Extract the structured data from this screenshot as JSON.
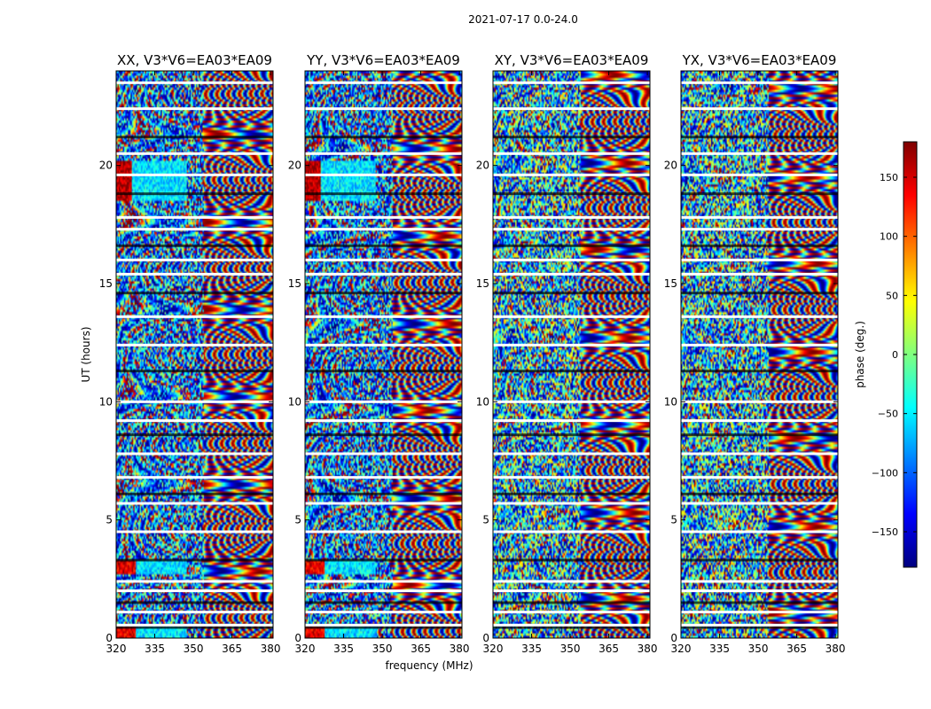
{
  "chart_data": {
    "type": "heatmap",
    "suptitle": "2021-07-17 0.0-24.0",
    "xlabel": "frequency (MHz)",
    "ylabel": "UT (hours)",
    "xlim": [
      320,
      381
    ],
    "ylim": [
      0,
      24
    ],
    "xticks": [
      320,
      335,
      350,
      365,
      380
    ],
    "xtick_labels": [
      "320",
      "335",
      "350",
      "365",
      "380"
    ],
    "yticks": [
      0,
      5,
      10,
      15,
      20
    ],
    "ytick_labels": [
      "0",
      "5",
      "10",
      "15",
      "20"
    ],
    "panels": [
      {
        "title": "XX, V3*V6=EA03*EA09",
        "pol": "XX",
        "phase_structure": "strong"
      },
      {
        "title": "YY, V3*V6=EA03*EA09",
        "pol": "YY",
        "phase_structure": "strong"
      },
      {
        "title": "XY, V3*V6=EA03*EA09",
        "pol": "XY",
        "phase_structure": "noisy"
      },
      {
        "title": "YX, V3*V6=EA03*EA09",
        "pol": "YX",
        "phase_structure": "noisy"
      }
    ],
    "colorbar": {
      "label": "phase (deg.)",
      "range": [
        -180,
        180
      ],
      "ticks": [
        150,
        100,
        50,
        0,
        -50,
        -100,
        -150
      ],
      "tick_labels": [
        "150",
        "100",
        "50",
        "0",
        "−50",
        "−100",
        "−150"
      ],
      "colormap": [
        "#00007f",
        "#0000ff",
        "#007fff",
        "#00ffff",
        "#7fff7f",
        "#ffff00",
        "#ff7f00",
        "#ff0000",
        "#7f0000"
      ]
    },
    "flagged_hours": [
      0.45,
      0.55,
      1.1,
      1.5,
      2.0,
      2.4,
      3.3,
      4.5,
      5.7,
      6.1,
      6.8,
      7.8,
      8.6,
      9.2,
      10.0,
      11.3,
      12.4,
      13.6,
      14.6,
      15.4,
      16.0,
      16.6,
      17.3,
      17.8,
      18.8,
      19.6,
      20.5,
      21.2,
      22.4,
      23.5
    ]
  }
}
